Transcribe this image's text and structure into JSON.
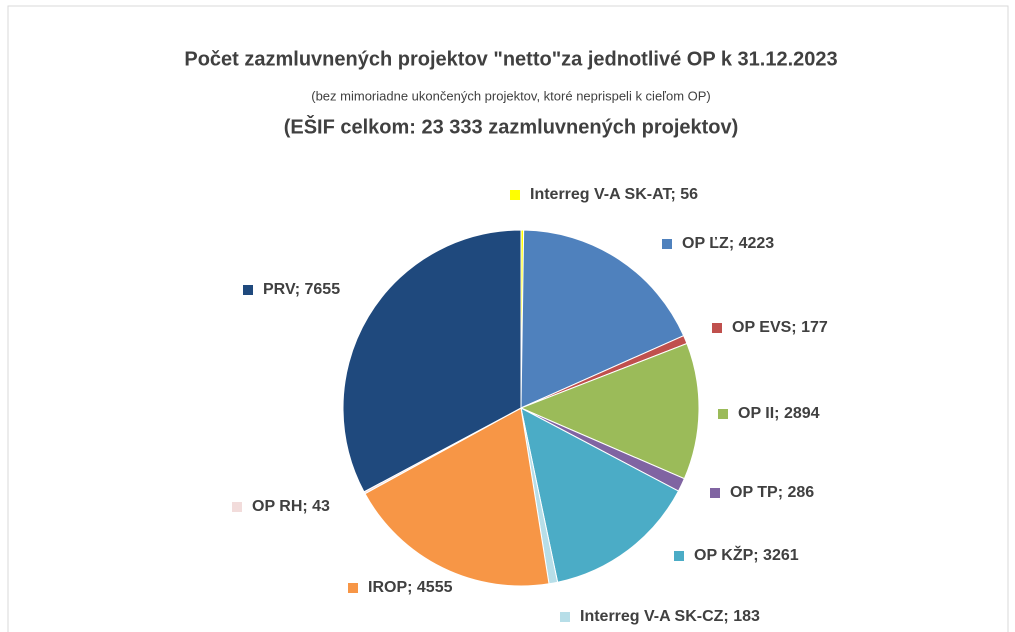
{
  "chart_data": {
    "type": "pie",
    "title": "Počet zazmluvnených projektov \"netto\"za jednotlivé OP k 31.12.2023",
    "subtitle": "(bez mimoriadne ukončených projektov, ktoré neprispeli k cieľom OP)",
    "subtitle2": "(EŠIF celkom: 23 333 zazmluvnených projektov)",
    "labels": [
      "Interreg V-A SK-AT; 56",
      "OP ĽZ; 4223",
      "OP EVS; 177",
      "OP II; 2894",
      "OP TP; 286",
      "OP KŽP; 3261",
      "Interreg V-A SK-CZ; 183",
      "IROP; 4555",
      "OP RH; 43",
      "PRV; 7655"
    ],
    "values": [
      56,
      4223,
      177,
      2894,
      286,
      3261,
      183,
      4555,
      43,
      7655
    ],
    "colors": [
      "#ffff00",
      "#4f81bd",
      "#c0504d",
      "#9bbb59",
      "#8064a2",
      "#4bacc6",
      "#b7dee8",
      "#f79646",
      "#f2dcdb",
      "#1f497d"
    ]
  }
}
